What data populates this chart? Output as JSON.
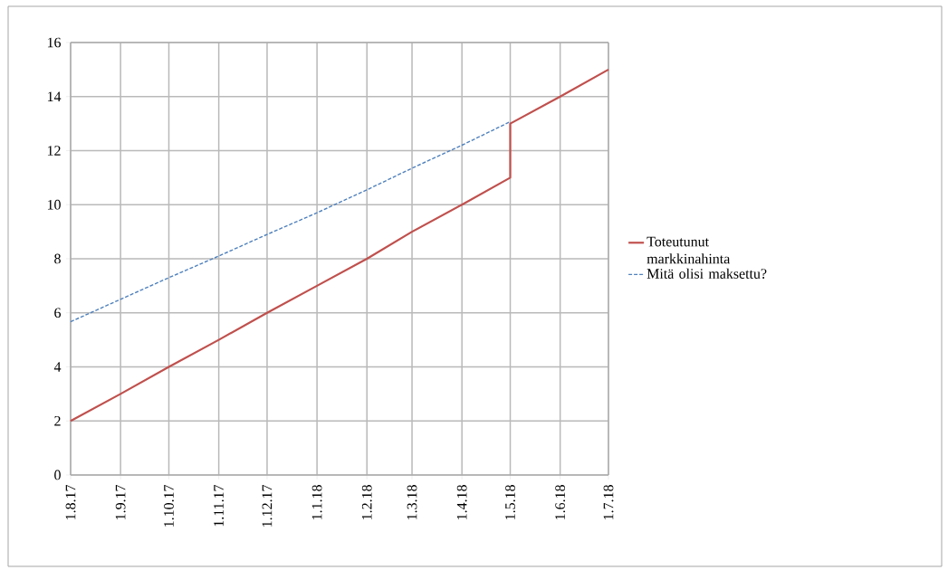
{
  "chart_data": {
    "type": "line",
    "xlim": [
      "2017-08-01",
      "2018-07-01"
    ],
    "xticks": [
      {
        "value": "2017-08-01",
        "label": "1.8.17"
      },
      {
        "value": "2017-09-01",
        "label": "1.9.17"
      },
      {
        "value": "2017-10-01",
        "label": "1.10.17"
      },
      {
        "value": "2017-11-01",
        "label": "1.11.17"
      },
      {
        "value": "2017-12-01",
        "label": "1.12.17"
      },
      {
        "value": "2018-01-01",
        "label": "1.1.18"
      },
      {
        "value": "2018-02-01",
        "label": "1.2.18"
      },
      {
        "value": "2018-03-01",
        "label": "1.3.18"
      },
      {
        "value": "2018-04-01",
        "label": "1.4.18"
      },
      {
        "value": "2018-05-01",
        "label": "1.5.18"
      },
      {
        "value": "2018-06-01",
        "label": "1.6.18"
      },
      {
        "value": "2018-07-01",
        "label": "1.7.18"
      }
    ],
    "ylim": [
      0,
      16
    ],
    "yticks": [
      0,
      2,
      4,
      6,
      8,
      10,
      12,
      14,
      16
    ],
    "grid": true,
    "legend": "right",
    "series": [
      {
        "name": "Toteutunut markkinahinta",
        "color": "#c0504d",
        "line_style": "solid",
        "x": [
          "2017-08-01",
          "2017-09-01",
          "2017-10-01",
          "2017-11-01",
          "2017-12-01",
          "2018-01-01",
          "2018-02-01",
          "2018-03-01",
          "2018-04-01",
          "2018-05-01",
          "2018-05-01",
          "2018-06-01",
          "2018-07-01"
        ],
        "values": [
          2,
          3,
          4,
          5,
          6,
          7,
          8,
          9,
          10,
          11,
          13,
          14,
          15
        ]
      },
      {
        "name": "Mitä olisi maksettu?",
        "color": "#4f81bd",
        "line_style": "dashed",
        "x": [
          "2017-08-01",
          "2017-09-01",
          "2017-10-01",
          "2017-11-01",
          "2017-12-01",
          "2018-01-01",
          "2018-02-01",
          "2018-03-01",
          "2018-04-01",
          "2018-05-01"
        ],
        "values": [
          5.67,
          6.5,
          7.3,
          8.1,
          8.9,
          9.7,
          10.55,
          11.35,
          12.2,
          13.07
        ]
      }
    ]
  }
}
